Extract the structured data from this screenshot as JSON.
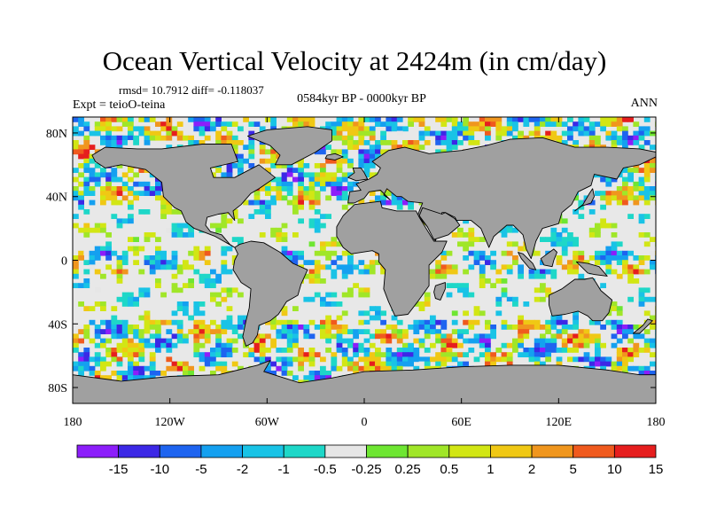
{
  "figure": {
    "title": "Ocean Vertical Velocity at 2424m (in cm/day)",
    "stats_line": "rmsd= 10.7912 diff= -0.118037",
    "experiment": "Expt = teioO-teina",
    "period": "0584kyr BP - 0000kyr BP",
    "season": "ANN"
  },
  "chart_data": {
    "type": "heatmap",
    "projection": "cylindrical-equidistant",
    "xlim": [
      -180,
      180
    ],
    "ylim": [
      -90,
      90
    ],
    "x_ticks": [
      {
        "value": -180,
        "label": "180"
      },
      {
        "value": -120,
        "label": "120W"
      },
      {
        "value": -60,
        "label": "60W"
      },
      {
        "value": 0,
        "label": "0"
      },
      {
        "value": 60,
        "label": "60E"
      },
      {
        "value": 120,
        "label": "120E"
      },
      {
        "value": 180,
        "label": "180"
      }
    ],
    "y_ticks": [
      {
        "value": 80,
        "label": "80N"
      },
      {
        "value": 40,
        "label": "40N"
      },
      {
        "value": 0,
        "label": "0"
      },
      {
        "value": -40,
        "label": "40S"
      },
      {
        "value": -80,
        "label": "80S"
      }
    ],
    "land_color": "#a0a0a0",
    "colorbar": {
      "orientation": "horizontal",
      "levels": [
        "-15",
        "-10",
        "-5",
        "-2",
        "-1",
        "-0.5",
        "-0.25",
        "0.25",
        "0.5",
        "1",
        "2",
        "5",
        "10",
        "15"
      ],
      "colors": [
        "#8c1efa",
        "#3c28e6",
        "#1e64f0",
        "#14a0f0",
        "#19c3e6",
        "#1ed7c8",
        "#e6e6e6",
        "#6ee632",
        "#a0e628",
        "#d2e614",
        "#f0c814",
        "#f0961e",
        "#f05a1e",
        "#e61e1e"
      ]
    }
  }
}
